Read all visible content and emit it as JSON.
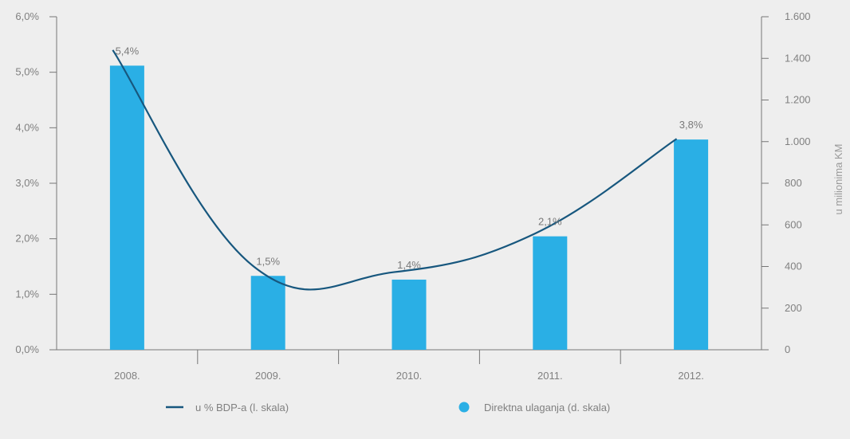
{
  "chart_data": {
    "type": "bar",
    "categories": [
      "2008.",
      "2009.",
      "2010.",
      "2011.",
      "2012."
    ],
    "series": [
      {
        "name": "Direktna ulaganja (d. skala)",
        "type": "bar",
        "axis": "right",
        "values": [
          1365,
          355,
          337,
          545,
          1010
        ],
        "color": "#2aafe5"
      },
      {
        "name": "u % BDP-a (l. skala)",
        "type": "line",
        "axis": "left",
        "values": [
          5.4,
          1.5,
          1.4,
          2.1,
          3.8
        ],
        "data_labels": [
          "5,4%",
          "1,5%",
          "1,4%",
          "2,1%",
          "3,8%"
        ],
        "color": "#17577e"
      }
    ],
    "left_axis": {
      "ylim": [
        0,
        6
      ],
      "ticks": [
        0,
        1,
        2,
        3,
        4,
        5,
        6
      ],
      "tick_labels": [
        "0,0%",
        "1,0%",
        "2,0%",
        "3,0%",
        "4,0%",
        "5,0%",
        "6,0%"
      ]
    },
    "right_axis": {
      "ylim": [
        0,
        1600
      ],
      "ticks": [
        0,
        200,
        400,
        600,
        800,
        1000,
        1200,
        1400,
        1600
      ],
      "tick_labels": [
        "0",
        "200",
        "400",
        "600",
        "800",
        "1.000",
        "1.200",
        "1.400",
        "1.600"
      ],
      "label": "u milionima KM"
    },
    "legend": {
      "placement": "bottom",
      "items": [
        {
          "label": "u % BDP-a (l. skala)",
          "marker": "line",
          "color": "#17577e"
        },
        {
          "label": "Direktna ulaganja (d. skala)",
          "marker": "dot",
          "color": "#2aafe5"
        }
      ]
    },
    "grid": false
  }
}
